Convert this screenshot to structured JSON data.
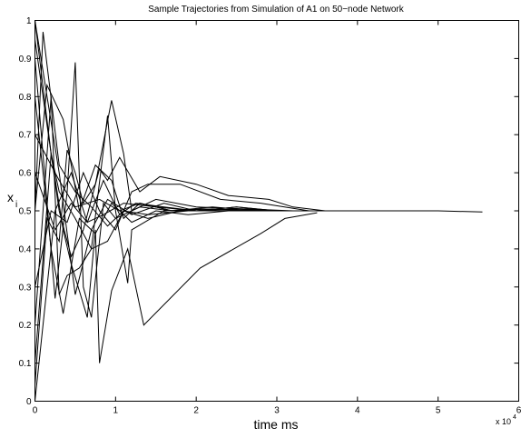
{
  "chart_data": {
    "type": "line",
    "title": "Sample Trajectories from Simulation of A1 on 50−node Network",
    "xlabel": "time ms",
    "ylabel_main": "x",
    "ylabel_sub": "i",
    "x_multiplier_base": "x 10",
    "x_multiplier_exp": "4",
    "xlim": [
      0,
      6
    ],
    "ylim": [
      0,
      1
    ],
    "x_ticks": [
      0,
      1,
      2,
      3,
      4,
      5,
      6
    ],
    "x_tick_labels": [
      "0",
      "1",
      "2",
      "3",
      "4",
      "5",
      "6"
    ],
    "y_ticks": [
      0,
      0.1,
      0.2,
      0.3,
      0.4,
      0.5,
      0.6,
      0.7,
      0.8,
      0.9,
      1
    ],
    "y_tick_labels": [
      "0",
      "0.1",
      "0.2",
      "0.3",
      "0.4",
      "0.5",
      "0.6",
      "0.7",
      "0.8",
      "0.9",
      "1"
    ],
    "grid": false,
    "line_color": "#000000",
    "series": [
      {
        "points": [
          [
            0,
            0
          ],
          [
            0.25,
            0.5
          ],
          [
            0.45,
            0.6
          ],
          [
            0.65,
            0.47
          ],
          [
            0.85,
            0.49
          ],
          [
            1.1,
            0.52
          ],
          [
            1.5,
            0.51
          ],
          [
            2.0,
            0.5
          ],
          [
            2.5,
            0.505
          ],
          [
            3.0,
            0.5
          ],
          [
            3.5,
            0.5
          ],
          [
            4.0,
            0.5
          ],
          [
            4.5,
            0.5
          ],
          [
            5.0,
            0.5
          ],
          [
            5.55,
            0.497
          ]
        ]
      },
      {
        "points": [
          [
            0,
            1
          ],
          [
            0.3,
            0.6
          ],
          [
            0.5,
            0.28
          ],
          [
            0.7,
            0.45
          ],
          [
            0.9,
            0.53
          ],
          [
            1.2,
            0.49
          ],
          [
            1.6,
            0.52
          ],
          [
            2.0,
            0.5
          ],
          [
            2.5,
            0.51
          ],
          [
            3.0,
            0.5
          ],
          [
            3.5,
            0.5
          ],
          [
            3.9,
            0.5
          ]
        ]
      },
      {
        "points": [
          [
            0,
            0.5
          ],
          [
            0.15,
            0.83
          ],
          [
            0.35,
            0.74
          ],
          [
            0.55,
            0.5
          ],
          [
            0.75,
            0.62
          ],
          [
            0.95,
            0.58
          ],
          [
            1.1,
            0.48
          ],
          [
            1.3,
            0.52
          ],
          [
            1.7,
            0.5
          ],
          [
            2.2,
            0.51
          ],
          [
            2.8,
            0.5
          ],
          [
            3.3,
            0.5
          ],
          [
            3.8,
            0.5
          ]
        ]
      },
      {
        "points": [
          [
            0,
            0.9
          ],
          [
            0.25,
            0.27
          ],
          [
            0.4,
            0.55
          ],
          [
            0.5,
            0.89
          ],
          [
            0.6,
            0.3
          ],
          [
            0.7,
            0.22
          ],
          [
            0.85,
            0.52
          ],
          [
            1.0,
            0.48
          ],
          [
            1.3,
            0.51
          ],
          [
            1.7,
            0.5
          ],
          [
            2.2,
            0.505
          ],
          [
            2.8,
            0.5
          ],
          [
            3.4,
            0.5
          ]
        ]
      },
      {
        "points": [
          [
            0,
            1
          ],
          [
            0.2,
            0.65
          ],
          [
            0.35,
            0.45
          ],
          [
            0.45,
            0.36
          ],
          [
            0.55,
            0.29
          ],
          [
            0.65,
            0.22
          ],
          [
            0.75,
            0.45
          ],
          [
            0.8,
            0.1
          ],
          [
            0.95,
            0.29
          ],
          [
            1.15,
            0.4
          ],
          [
            1.35,
            0.2
          ],
          [
            2.05,
            0.35
          ],
          [
            2.8,
            0.44
          ],
          [
            3.1,
            0.48
          ],
          [
            3.5,
            0.495
          ]
        ]
      },
      {
        "points": [
          [
            0,
            0.04
          ],
          [
            0.15,
            0.48
          ],
          [
            0.3,
            0.42
          ],
          [
            0.4,
            0.66
          ],
          [
            0.5,
            0.6
          ],
          [
            0.6,
            0.52
          ],
          [
            0.75,
            0.57
          ],
          [
            0.95,
            0.79
          ],
          [
            1.1,
            0.65
          ],
          [
            1.2,
            0.5
          ],
          [
            1.5,
            0.53
          ],
          [
            2.0,
            0.51
          ],
          [
            2.6,
            0.505
          ],
          [
            3.2,
            0.5
          ],
          [
            3.8,
            0.5
          ]
        ]
      },
      {
        "points": [
          [
            0,
            0.95
          ],
          [
            0.3,
            0.5
          ],
          [
            0.45,
            0.38
          ],
          [
            0.6,
            0.45
          ],
          [
            0.8,
            0.61
          ],
          [
            0.9,
            0.58
          ],
          [
            1.05,
            0.64
          ],
          [
            1.3,
            0.55
          ],
          [
            1.55,
            0.59
          ],
          [
            2.0,
            0.57
          ],
          [
            2.4,
            0.54
          ],
          [
            2.9,
            0.53
          ],
          [
            3.2,
            0.51
          ],
          [
            3.6,
            0.5
          ]
        ]
      },
      {
        "points": [
          [
            0,
            0.3
          ],
          [
            0.2,
            0.5
          ],
          [
            0.4,
            0.47
          ],
          [
            0.6,
            0.6
          ],
          [
            0.8,
            0.5
          ],
          [
            1.0,
            0.45
          ],
          [
            1.2,
            0.55
          ],
          [
            1.4,
            0.57
          ],
          [
            1.8,
            0.57
          ],
          [
            2.3,
            0.53
          ],
          [
            2.8,
            0.52
          ],
          [
            3.4,
            0.5
          ]
        ]
      },
      {
        "points": [
          [
            0,
            0.2
          ],
          [
            0.2,
            0.8
          ],
          [
            0.3,
            0.28
          ],
          [
            0.4,
            0.33
          ],
          [
            0.55,
            0.35
          ],
          [
            0.7,
            0.4
          ],
          [
            0.9,
            0.75
          ],
          [
            1.0,
            0.5
          ],
          [
            1.15,
            0.31
          ],
          [
            1.2,
            0.45
          ],
          [
            1.6,
            0.5
          ],
          [
            2.1,
            0.505
          ],
          [
            2.7,
            0.5
          ],
          [
            3.3,
            0.5
          ]
        ]
      },
      {
        "points": [
          [
            0,
            0.6
          ],
          [
            0.25,
            0.45
          ],
          [
            0.45,
            0.52
          ],
          [
            0.65,
            0.47
          ],
          [
            0.85,
            0.58
          ],
          [
            1.05,
            0.49
          ],
          [
            1.25,
            0.52
          ],
          [
            1.6,
            0.51
          ],
          [
            2.0,
            0.5
          ],
          [
            2.5,
            0.51
          ],
          [
            3.0,
            0.5
          ],
          [
            3.6,
            0.5
          ]
        ]
      },
      {
        "points": [
          [
            0,
            0.8
          ],
          [
            0.2,
            0.4
          ],
          [
            0.35,
            0.23
          ],
          [
            0.55,
            0.48
          ],
          [
            0.75,
            0.44
          ],
          [
            0.95,
            0.52
          ],
          [
            1.2,
            0.47
          ],
          [
            1.5,
            0.5
          ],
          [
            1.9,
            0.49
          ],
          [
            2.4,
            0.5
          ],
          [
            3.0,
            0.5
          ],
          [
            3.5,
            0.5
          ]
        ]
      },
      {
        "points": [
          [
            0,
            0.5
          ],
          [
            0.1,
            0.97
          ],
          [
            0.3,
            0.62
          ],
          [
            0.5,
            0.55
          ],
          [
            0.7,
            0.51
          ],
          [
            0.9,
            0.46
          ],
          [
            1.1,
            0.5
          ],
          [
            1.4,
            0.48
          ],
          [
            1.8,
            0.5
          ],
          [
            2.3,
            0.5
          ],
          [
            2.9,
            0.5
          ],
          [
            3.4,
            0.5
          ]
        ]
      },
      {
        "points": [
          [
            0,
            0.1
          ],
          [
            0.2,
            0.65
          ],
          [
            0.3,
            0.55
          ],
          [
            0.5,
            0.48
          ],
          [
            0.7,
            0.4
          ],
          [
            0.9,
            0.42
          ],
          [
            1.1,
            0.5
          ],
          [
            1.4,
            0.49
          ],
          [
            1.9,
            0.5
          ],
          [
            2.4,
            0.5
          ],
          [
            3.1,
            0.5
          ]
        ]
      },
      {
        "points": [
          [
            0,
            0.7
          ],
          [
            0.3,
            0.58
          ],
          [
            0.5,
            0.51
          ],
          [
            0.8,
            0.53
          ],
          [
            1.05,
            0.5
          ],
          [
            1.3,
            0.52
          ],
          [
            1.7,
            0.5
          ],
          [
            2.2,
            0.5
          ],
          [
            2.8,
            0.5
          ]
        ]
      }
    ]
  }
}
